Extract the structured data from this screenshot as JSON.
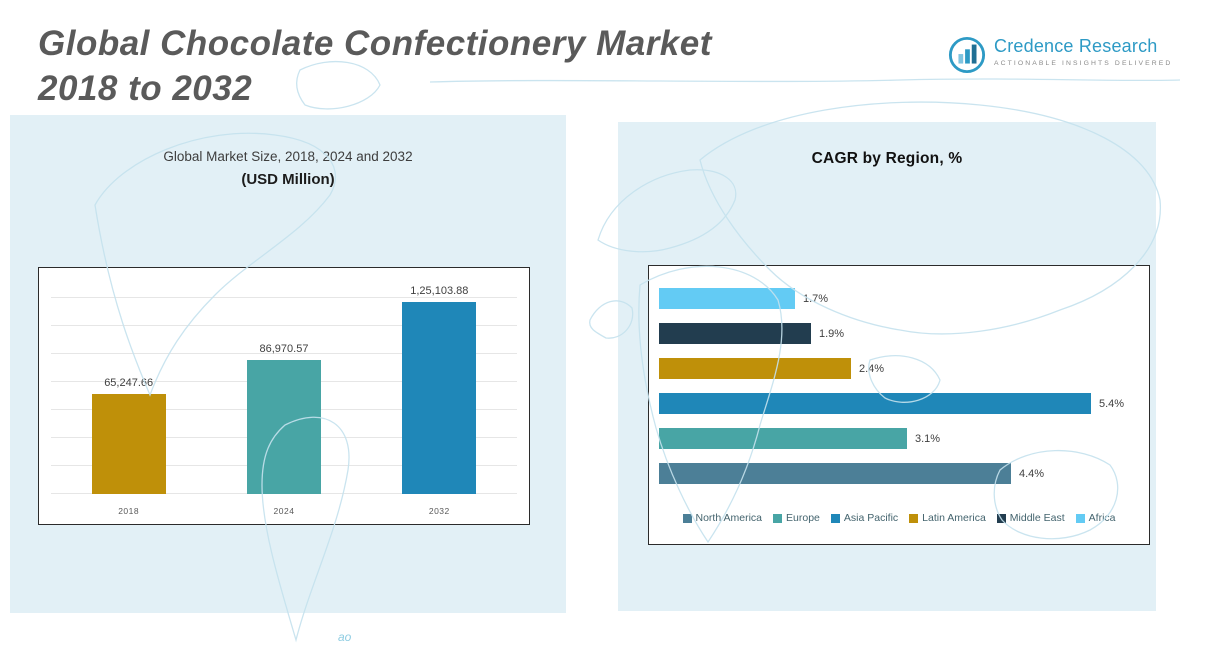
{
  "page": {
    "title_line1": "Global Chocolate Confectionery Market",
    "title_line2": "2018 to 2032"
  },
  "logo": {
    "brand": "Credence Research",
    "tagline": "Actionable Insights Delivered"
  },
  "map": {
    "artifact": "ao"
  },
  "left_panel": {
    "subtitle_line1": "Global Market Size, 2018, 2024 and 2032",
    "subtitle_line2": "(USD Million)"
  },
  "right_panel": {
    "title": "CAGR by Region, %"
  },
  "colors": {
    "panel_bg": "#e2f0f6",
    "title_gray": "#5a5a5a",
    "brand_blue": "#2d9ac5",
    "gold": "#bf9009",
    "teal": "#48a5a5",
    "blue": "#1f87b8",
    "navy": "#223d4f",
    "steel": "#4c7f97",
    "light_blue": "#63cbf4"
  },
  "chart_data": [
    {
      "type": "bar",
      "title": "Global Market Size, 2018, 2024 and 2032 (USD Million)",
      "categories": [
        "2018",
        "2024",
        "2032"
      ],
      "values": [
        65247.66,
        86970.57,
        125103.88
      ],
      "value_labels": [
        "65,247.66",
        "86,970.57",
        "1,25,103.88"
      ],
      "bar_colors": [
        "#bf9009",
        "#48a5a5",
        "#1f87b8"
      ],
      "xlabel": "",
      "ylabel": "USD Million",
      "ylim": [
        0,
        130000
      ],
      "grid": true,
      "legend_position": "none"
    },
    {
      "type": "bar",
      "orientation": "horizontal",
      "title": "CAGR by Region, %",
      "categories": [
        "Africa",
        "Middle East",
        "Latin America",
        "Asia Pacific",
        "Europe",
        "North America"
      ],
      "values": [
        1.7,
        1.9,
        2.4,
        5.4,
        3.1,
        4.4
      ],
      "value_labels": [
        "1.7%",
        "1.9%",
        "2.4%",
        "5.4%",
        "3.1%",
        "4.4%"
      ],
      "bar_colors": [
        "#63cbf4",
        "#223d4f",
        "#bf9009",
        "#1f87b8",
        "#48a5a5",
        "#4c7f97"
      ],
      "xlabel": "CAGR %",
      "ylabel": "",
      "xlim": [
        0,
        6
      ],
      "grid": false,
      "legend_position": "bottom",
      "legend": [
        "North America",
        "Europe",
        "Asia Pacific",
        "Latin America",
        "Middle East",
        "Africa"
      ],
      "legend_colors": [
        "#4c7f97",
        "#48a5a5",
        "#1f87b8",
        "#bf9009",
        "#223d4f",
        "#63cbf4"
      ]
    }
  ]
}
